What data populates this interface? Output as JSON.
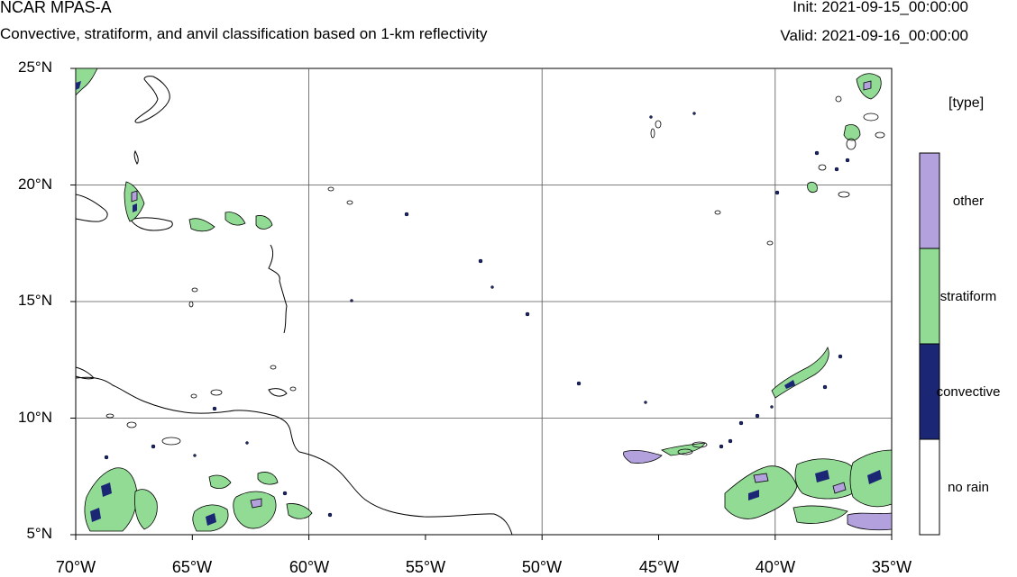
{
  "header": {
    "title": "NCAR MPAS-A",
    "subtitle": "Convective, stratiform, and anvil classification based on 1-km reflectivity",
    "init": "Init: 2021-09-15_00:00:00",
    "valid": "Valid: 2021-09-16_00:00:00"
  },
  "axes": {
    "lat_labels": [
      "25°N",
      "20°N",
      "15°N",
      "10°N",
      "5°N"
    ],
    "lon_labels": [
      "70°W",
      "65°W",
      "60°W",
      "55°W",
      "50°W",
      "45°W",
      "40°W",
      "35°W"
    ]
  },
  "legend": {
    "title": "[type]",
    "categories": [
      {
        "label": "other",
        "color": "#b3a1dd"
      },
      {
        "label": "stratiform",
        "color": "#92db95"
      },
      {
        "label": "convective",
        "color": "#1b2775"
      },
      {
        "label": "no rain",
        "color": "#ffffff"
      }
    ]
  },
  "colors": {
    "coastline": "#000000",
    "gridline": "#555555"
  }
}
